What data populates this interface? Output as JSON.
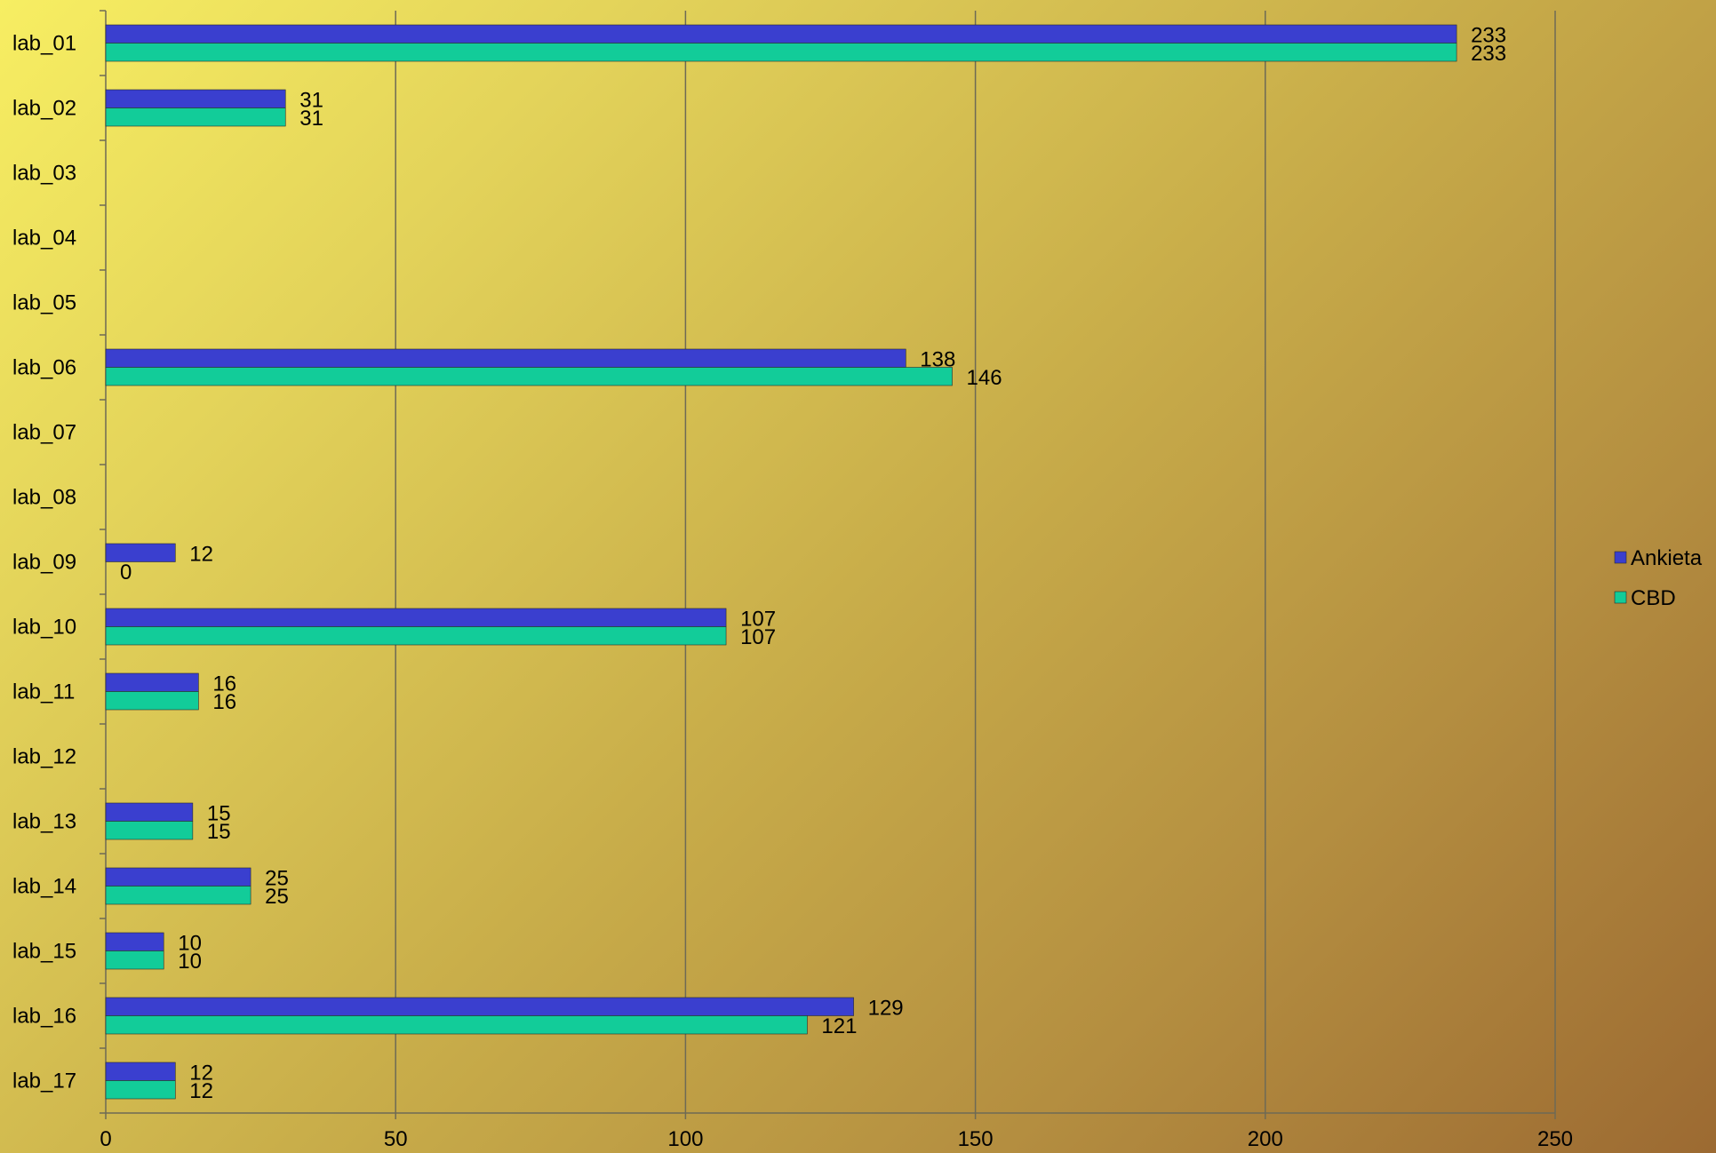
{
  "chart_data": {
    "type": "bar",
    "orientation": "horizontal",
    "title": "",
    "xlabel": "",
    "ylabel": "",
    "xlim": [
      0,
      250
    ],
    "x_ticks": [
      0,
      50,
      100,
      150,
      200,
      250
    ],
    "grid": "vertical",
    "legend_position": "right",
    "categories": [
      "lab_01",
      "lab_02",
      "lab_03",
      "lab_04",
      "lab_05",
      "lab_06",
      "lab_07",
      "lab_08",
      "lab_09",
      "lab_10",
      "lab_11",
      "lab_12",
      "lab_13",
      "lab_14",
      "lab_15",
      "lab_16",
      "lab_17"
    ],
    "series": [
      {
        "name": "Ankieta",
        "color": "#3a3fcf",
        "values": [
          233,
          31,
          null,
          null,
          null,
          138,
          null,
          null,
          12,
          107,
          16,
          null,
          15,
          25,
          10,
          129,
          12
        ]
      },
      {
        "name": "CBD",
        "color": "#12cc99",
        "values": [
          233,
          31,
          null,
          null,
          null,
          146,
          null,
          null,
          0,
          107,
          16,
          null,
          15,
          25,
          10,
          121,
          12
        ]
      }
    ]
  }
}
